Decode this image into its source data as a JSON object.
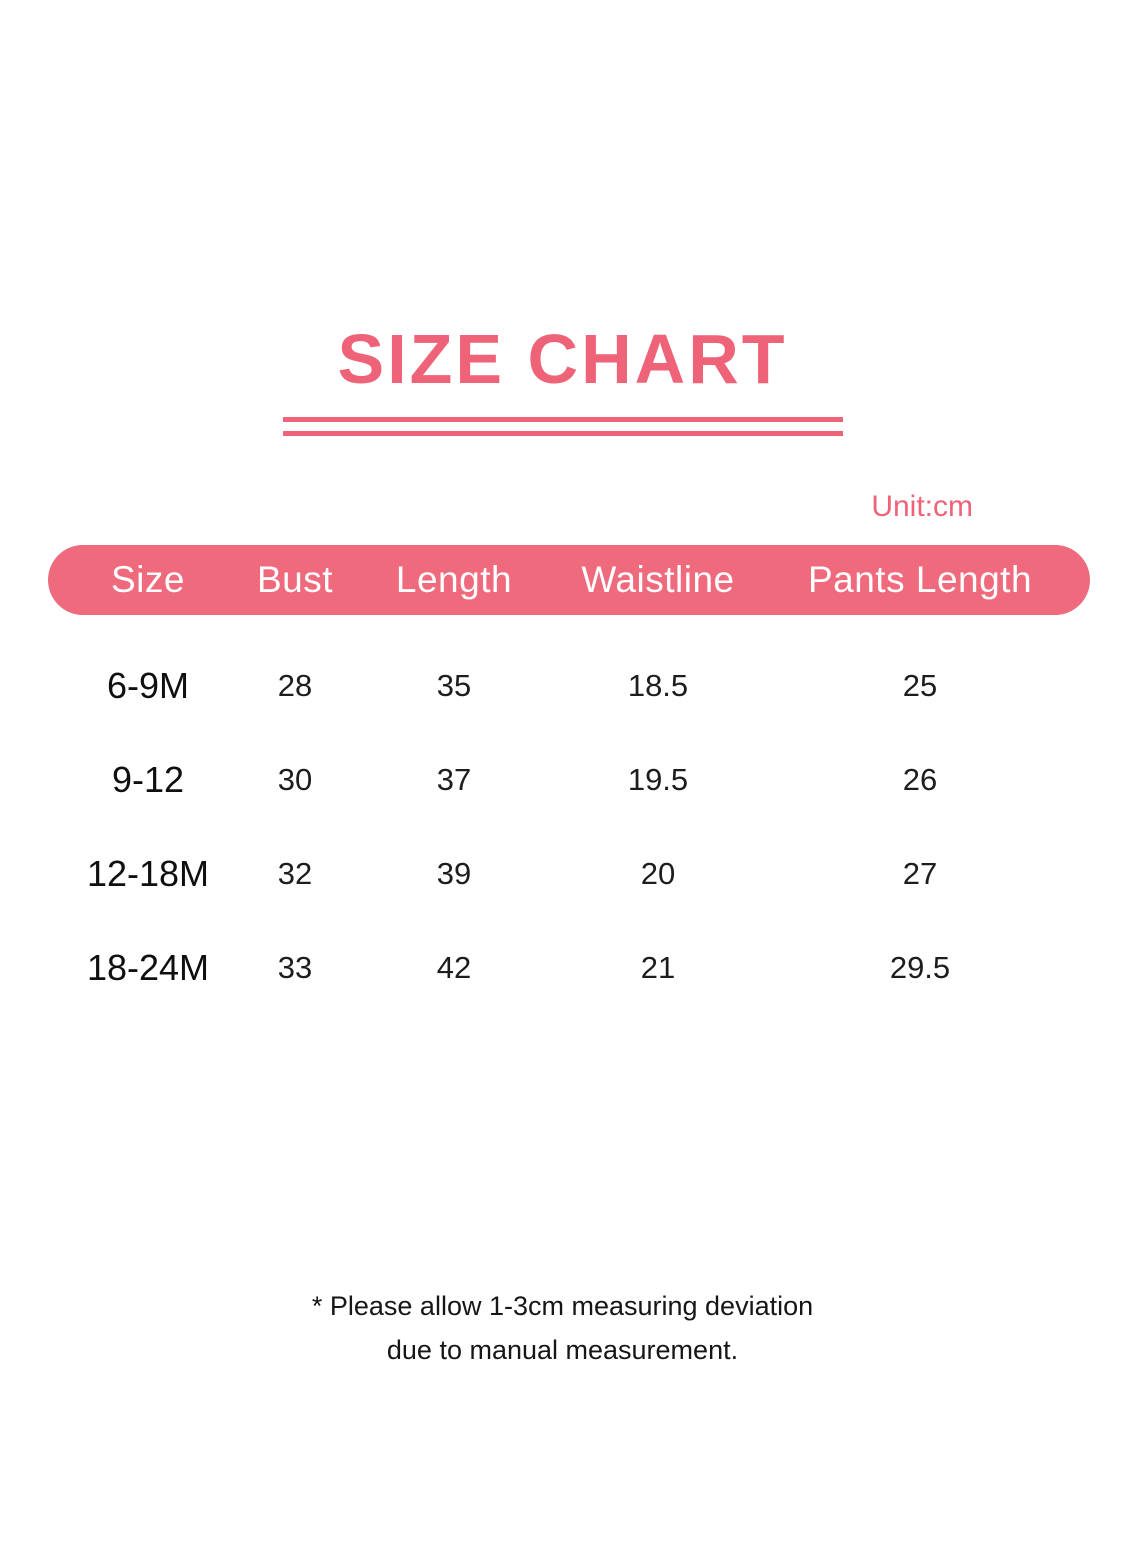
{
  "page": {
    "accent_color": "#ee6378",
    "bar_color": "#ef6a7c",
    "unit_label": "Unit:cm"
  },
  "chart_data": {
    "type": "table",
    "title": "SIZE CHART",
    "unit": "cm",
    "columns": [
      "Size",
      "Bust",
      "Length",
      "Waistline",
      "Pants Length"
    ],
    "rows": [
      [
        "6-9M",
        "28",
        "35",
        "18.5",
        "25"
      ],
      [
        "9-12",
        "30",
        "37",
        "19.5",
        "26"
      ],
      [
        "12-18M",
        "32",
        "39",
        "20",
        "27"
      ],
      [
        "18-24M",
        "33",
        "42",
        "21",
        "29.5"
      ]
    ]
  },
  "footnote": {
    "line1": "* Please allow 1-3cm measuring deviation",
    "line2": "due to manual measurement."
  }
}
